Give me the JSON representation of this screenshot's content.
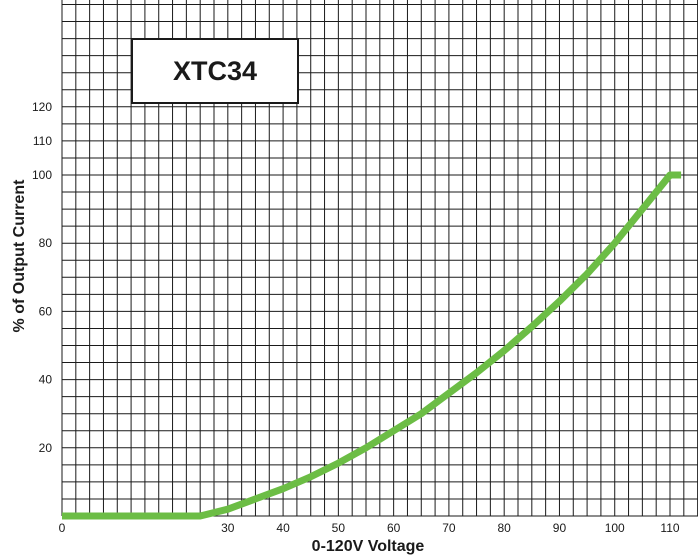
{
  "chart_data": {
    "type": "line",
    "title": "XTC34",
    "xlabel": "0-120V Voltage",
    "ylabel": "% of Output Current",
    "xlim": [
      0,
      112
    ],
    "ylim": [
      0,
      125
    ],
    "x_ticks": [
      0,
      30,
      40,
      50,
      60,
      70,
      80,
      90,
      100,
      110
    ],
    "x_tick_labels": [
      "0",
      "30",
      "40",
      "50",
      "60",
      "70",
      "80",
      "90",
      "100",
      "110"
    ],
    "y_ticks": [
      20,
      40,
      60,
      80,
      100,
      110,
      120
    ],
    "y_tick_labels": [
      "20",
      "40",
      "60",
      "80",
      "100",
      "110",
      "120"
    ],
    "grid": true,
    "series": [
      {
        "color": "#6cbd45",
        "x": [
          0,
          25,
          30,
          35,
          40,
          45,
          50,
          55,
          60,
          65,
          70,
          75,
          80,
          85,
          90,
          95,
          100,
          105,
          110,
          112
        ],
        "y": [
          0,
          0,
          2,
          5,
          8,
          11.5,
          15.5,
          20,
          25,
          30,
          36,
          42,
          48.5,
          55.5,
          63,
          71,
          80,
          90,
          100,
          100
        ]
      }
    ]
  },
  "colors": {
    "grid": "#1a1a1a",
    "curve": "#6cbd45",
    "background": "#ffffff"
  }
}
